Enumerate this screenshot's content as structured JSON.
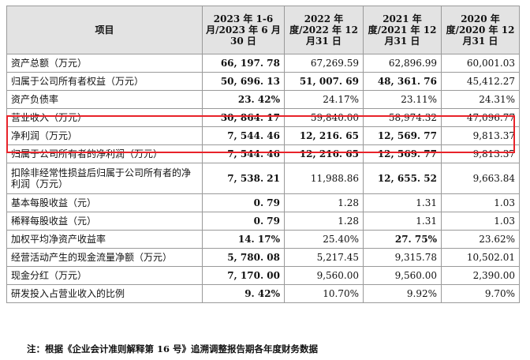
{
  "table": {
    "headers": [
      "项目",
      "2023 年 1-6 月/2023 年 6 月30 日",
      "2022 年度/2022 年 12 月31 日",
      "2021 年度/2021 年 12 月31 日",
      "2020 年度/2020 年 12 月31 日"
    ],
    "rows": [
      {
        "label": "资产总额（万元）",
        "values": [
          "66, 197. 78",
          "67,269.59",
          "62,896.99",
          "60,001.03"
        ],
        "bold": [
          true,
          false,
          false,
          false
        ]
      },
      {
        "label": "归属于公司所有者权益（万元）",
        "values": [
          "50, 696. 13",
          "51, 007. 69",
          "48, 361. 76",
          "45,412.27"
        ],
        "bold": [
          true,
          true,
          true,
          false
        ]
      },
      {
        "label": "资产负债率",
        "values": [
          "23. 42%",
          "24.17%",
          "23.11%",
          "24.31%"
        ],
        "bold": [
          true,
          false,
          false,
          false
        ]
      },
      {
        "label": "营业收入（万元）",
        "values": [
          "30, 864. 17",
          "59,840.00",
          "58,974.32",
          "47,096.77"
        ],
        "bold": [
          true,
          false,
          false,
          false
        ]
      },
      {
        "label": "净利润（万元）",
        "values": [
          "7, 544. 46",
          "12, 216. 65",
          "12, 569. 77",
          "9,813.37"
        ],
        "bold": [
          true,
          true,
          true,
          false
        ]
      },
      {
        "label": "归属于公司所有者的净利润（万元）",
        "values": [
          "7, 544. 46",
          "12, 216. 65",
          "12, 569. 77",
          "9,813.37"
        ],
        "bold": [
          true,
          true,
          true,
          false
        ]
      },
      {
        "label": "扣除非经常性损益后归属于公司所有者的净利润（万元）",
        "values": [
          "7, 538. 21",
          "11,988.86",
          "12, 655. 52",
          "9,663.84"
        ],
        "bold": [
          true,
          false,
          true,
          false
        ]
      },
      {
        "label": "基本每股收益（元）",
        "values": [
          "0. 79",
          "1.28",
          "1.31",
          "1.03"
        ],
        "bold": [
          true,
          false,
          false,
          false
        ]
      },
      {
        "label": "稀释每股收益（元）",
        "values": [
          "0. 79",
          "1.28",
          "1.31",
          "1.03"
        ],
        "bold": [
          true,
          false,
          false,
          false
        ]
      },
      {
        "label": "加权平均净资产收益率",
        "values": [
          "14. 17%",
          "25.40%",
          "27. 75%",
          "23.62%"
        ],
        "bold": [
          true,
          false,
          true,
          false
        ]
      },
      {
        "label": "经营活动产生的现金流量净额（万元）",
        "values": [
          "5, 780. 08",
          "5,217.45",
          "9,315.78",
          "10,502.01"
        ],
        "bold": [
          true,
          false,
          false,
          false
        ]
      },
      {
        "label": "现金分红（万元）",
        "values": [
          "7, 170. 00",
          "9,560.00",
          "9,560.00",
          "2,390.00"
        ],
        "bold": [
          true,
          false,
          false,
          false
        ]
      },
      {
        "label": "研发投入占营业收入的比例",
        "values": [
          "9. 42%",
          "10.70%",
          "9.92%",
          "9.70%"
        ],
        "bold": [
          true,
          false,
          false,
          false
        ]
      }
    ]
  },
  "note": "注：根据《企业会计准则解释第 16 号》追溯调整报告期各年度财务数据",
  "highlight_color": "#e8232a"
}
